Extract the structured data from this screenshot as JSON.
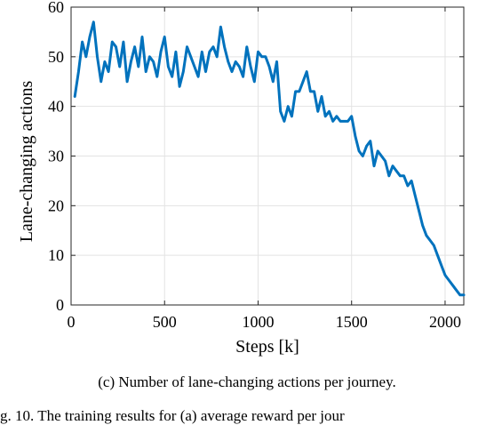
{
  "chart_data": {
    "type": "line",
    "title": "",
    "xlabel": "Steps [k]",
    "ylabel": "Lane-changing actions",
    "xlim": [
      0,
      2100
    ],
    "ylim": [
      0,
      60
    ],
    "xticks": [
      0,
      500,
      1000,
      1500,
      2000
    ],
    "yticks": [
      0,
      10,
      20,
      30,
      40,
      50,
      60
    ],
    "grid": true,
    "color": "#0072BD",
    "series": [
      {
        "x": [
          20,
          40,
          60,
          80,
          100,
          120,
          140,
          160,
          180,
          200,
          220,
          240,
          260,
          280,
          300,
          320,
          340,
          360,
          380,
          400,
          420,
          440,
          460,
          480,
          500,
          520,
          540,
          560,
          580,
          600,
          620,
          640,
          660,
          680,
          700,
          720,
          740,
          760,
          780,
          800,
          820,
          840,
          860,
          880,
          900,
          920,
          940,
          960,
          980,
          1000,
          1020,
          1040,
          1060,
          1080,
          1100,
          1120,
          1140,
          1160,
          1180,
          1200,
          1220,
          1240,
          1260,
          1280,
          1300,
          1320,
          1340,
          1360,
          1380,
          1400,
          1420,
          1440,
          1460,
          1480,
          1500,
          1520,
          1540,
          1560,
          1580,
          1600,
          1620,
          1640,
          1660,
          1680,
          1700,
          1720,
          1740,
          1760,
          1780,
          1800,
          1820,
          1840,
          1860,
          1880,
          1900,
          1920,
          1940,
          1960,
          1980,
          2000,
          2020,
          2040,
          2060,
          2080,
          2100
        ],
        "values": [
          42,
          47,
          53,
          50,
          54,
          57,
          50,
          45,
          49,
          47,
          53,
          52,
          48,
          53,
          45,
          49,
          52,
          48,
          54,
          47,
          50,
          49,
          46,
          51,
          54,
          48,
          46,
          51,
          44,
          47,
          52,
          50,
          48,
          46,
          51,
          47,
          51,
          52,
          50,
          56,
          52,
          49,
          47,
          49,
          48,
          46,
          52,
          48,
          45,
          51,
          50,
          50,
          48,
          45,
          49,
          39,
          37,
          40,
          38,
          43,
          43,
          45,
          47,
          43,
          43,
          39,
          42,
          38,
          39,
          37,
          38,
          37,
          37,
          37,
          38,
          34,
          31,
          30,
          32,
          33,
          28,
          31,
          30,
          29,
          26,
          28,
          27,
          26,
          26,
          24,
          25,
          22,
          19,
          16,
          14,
          13,
          12,
          10,
          8,
          6,
          5,
          4,
          3,
          2,
          2
        ]
      }
    ]
  },
  "caption": "(c) Number of lane-changing actions per journey.",
  "bottom_text": "g. 10.  The training results for (a) average reward per jour"
}
